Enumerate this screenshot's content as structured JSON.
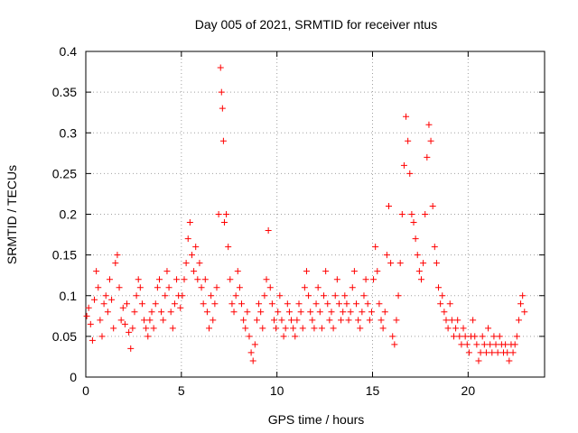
{
  "chart_data": {
    "type": "scatter",
    "title": "Day 005 of 2021, SRMTID for receiver ntus",
    "xlabel": "GPS time / hours",
    "ylabel": "SRMTID / TECUs",
    "xlim": [
      0,
      24
    ],
    "ylim": [
      0,
      0.4
    ],
    "x_ticks": [
      0,
      5,
      10,
      15,
      20
    ],
    "x_tick_labels": [
      "0",
      "5",
      "10",
      "15",
      "20"
    ],
    "y_ticks": [
      0,
      0.05,
      0.1,
      0.15,
      0.2,
      0.25,
      0.3,
      0.35,
      0.4
    ],
    "y_tick_labels": [
      "0",
      "0.05",
      "0.1",
      "0.15",
      "0.2",
      "0.25",
      "0.3",
      "0.35",
      "0.4"
    ],
    "grid": true,
    "marker": "+",
    "color": "#ff0000",
    "series": [
      {
        "name": "ntus",
        "points": [
          [
            0.05,
            0.075
          ],
          [
            0.15,
            0.085
          ],
          [
            0.25,
            0.065
          ],
          [
            0.35,
            0.045
          ],
          [
            0.45,
            0.095
          ],
          [
            0.55,
            0.13
          ],
          [
            0.65,
            0.11
          ],
          [
            0.75,
            0.07
          ],
          [
            0.85,
            0.05
          ],
          [
            0.95,
            0.09
          ],
          [
            1.05,
            0.1
          ],
          [
            1.15,
            0.08
          ],
          [
            1.25,
            0.12
          ],
          [
            1.35,
            0.095
          ],
          [
            1.45,
            0.06
          ],
          [
            1.55,
            0.14
          ],
          [
            1.65,
            0.15
          ],
          [
            1.75,
            0.11
          ],
          [
            1.85,
            0.07
          ],
          [
            1.95,
            0.085
          ],
          [
            2.05,
            0.065
          ],
          [
            2.15,
            0.09
          ],
          [
            2.25,
            0.055
          ],
          [
            2.35,
            0.035
          ],
          [
            2.45,
            0.06
          ],
          [
            2.55,
            0.08
          ],
          [
            2.65,
            0.1
          ],
          [
            2.75,
            0.12
          ],
          [
            2.85,
            0.11
          ],
          [
            2.95,
            0.09
          ],
          [
            3.05,
            0.07
          ],
          [
            3.15,
            0.06
          ],
          [
            3.25,
            0.05
          ],
          [
            3.35,
            0.07
          ],
          [
            3.45,
            0.08
          ],
          [
            3.55,
            0.06
          ],
          [
            3.65,
            0.09
          ],
          [
            3.75,
            0.11
          ],
          [
            3.85,
            0.12
          ],
          [
            3.95,
            0.08
          ],
          [
            4.05,
            0.07
          ],
          [
            4.15,
            0.1
          ],
          [
            4.25,
            0.13
          ],
          [
            4.35,
            0.11
          ],
          [
            4.45,
            0.08
          ],
          [
            4.55,
            0.06
          ],
          [
            4.65,
            0.09
          ],
          [
            4.75,
            0.12
          ],
          [
            4.85,
            0.1
          ],
          [
            4.95,
            0.085
          ],
          [
            5.05,
            0.1
          ],
          [
            5.15,
            0.12
          ],
          [
            5.25,
            0.14
          ],
          [
            5.35,
            0.17
          ],
          [
            5.45,
            0.19
          ],
          [
            5.55,
            0.15
          ],
          [
            5.65,
            0.13
          ],
          [
            5.75,
            0.16
          ],
          [
            5.85,
            0.12
          ],
          [
            5.95,
            0.14
          ],
          [
            6.05,
            0.11
          ],
          [
            6.15,
            0.09
          ],
          [
            6.25,
            0.12
          ],
          [
            6.35,
            0.08
          ],
          [
            6.45,
            0.06
          ],
          [
            6.55,
            0.1
          ],
          [
            6.65,
            0.07
          ],
          [
            6.75,
            0.09
          ],
          [
            6.85,
            0.11
          ],
          [
            6.95,
            0.2
          ],
          [
            7.05,
            0.38
          ],
          [
            7.1,
            0.35
          ],
          [
            7.15,
            0.33
          ],
          [
            7.2,
            0.29
          ],
          [
            7.25,
            0.19
          ],
          [
            7.35,
            0.2
          ],
          [
            7.45,
            0.16
          ],
          [
            7.55,
            0.12
          ],
          [
            7.65,
            0.09
          ],
          [
            7.75,
            0.08
          ],
          [
            7.85,
            0.1
          ],
          [
            7.95,
            0.13
          ],
          [
            8.05,
            0.11
          ],
          [
            8.15,
            0.09
          ],
          [
            8.25,
            0.07
          ],
          [
            8.35,
            0.06
          ],
          [
            8.45,
            0.08
          ],
          [
            8.55,
            0.05
          ],
          [
            8.65,
            0.03
          ],
          [
            8.75,
            0.02
          ],
          [
            8.85,
            0.04
          ],
          [
            8.95,
            0.07
          ],
          [
            9.05,
            0.09
          ],
          [
            9.15,
            0.08
          ],
          [
            9.25,
            0.06
          ],
          [
            9.35,
            0.1
          ],
          [
            9.45,
            0.12
          ],
          [
            9.55,
            0.18
          ],
          [
            9.65,
            0.11
          ],
          [
            9.75,
            0.09
          ],
          [
            9.85,
            0.07
          ],
          [
            9.95,
            0.06
          ],
          [
            10.05,
            0.08
          ],
          [
            10.15,
            0.1
          ],
          [
            10.25,
            0.07
          ],
          [
            10.35,
            0.05
          ],
          [
            10.45,
            0.06
          ],
          [
            10.55,
            0.09
          ],
          [
            10.65,
            0.08
          ],
          [
            10.75,
            0.07
          ],
          [
            10.85,
            0.06
          ],
          [
            10.95,
            0.05
          ],
          [
            11.05,
            0.07
          ],
          [
            11.15,
            0.09
          ],
          [
            11.25,
            0.08
          ],
          [
            11.35,
            0.06
          ],
          [
            11.45,
            0.11
          ],
          [
            11.55,
            0.13
          ],
          [
            11.65,
            0.1
          ],
          [
            11.75,
            0.08
          ],
          [
            11.85,
            0.07
          ],
          [
            11.95,
            0.06
          ],
          [
            12.05,
            0.09
          ],
          [
            12.15,
            0.11
          ],
          [
            12.25,
            0.08
          ],
          [
            12.35,
            0.06
          ],
          [
            12.45,
            0.1
          ],
          [
            12.55,
            0.13
          ],
          [
            12.65,
            0.09
          ],
          [
            12.75,
            0.07
          ],
          [
            12.85,
            0.08
          ],
          [
            12.95,
            0.06
          ],
          [
            13.05,
            0.1
          ],
          [
            13.15,
            0.12
          ],
          [
            13.25,
            0.09
          ],
          [
            13.35,
            0.07
          ],
          [
            13.45,
            0.08
          ],
          [
            13.55,
            0.1
          ],
          [
            13.65,
            0.09
          ],
          [
            13.75,
            0.07
          ],
          [
            13.85,
            0.08
          ],
          [
            13.95,
            0.11
          ],
          [
            14.05,
            0.13
          ],
          [
            14.15,
            0.09
          ],
          [
            14.25,
            0.07
          ],
          [
            14.35,
            0.06
          ],
          [
            14.45,
            0.08
          ],
          [
            14.55,
            0.1
          ],
          [
            14.65,
            0.12
          ],
          [
            14.75,
            0.09
          ],
          [
            14.85,
            0.07
          ],
          [
            14.95,
            0.08
          ],
          [
            15.05,
            0.12
          ],
          [
            15.15,
            0.16
          ],
          [
            15.25,
            0.13
          ],
          [
            15.35,
            0.09
          ],
          [
            15.45,
            0.07
          ],
          [
            15.55,
            0.06
          ],
          [
            15.65,
            0.08
          ],
          [
            15.75,
            0.15
          ],
          [
            15.85,
            0.21
          ],
          [
            15.95,
            0.14
          ],
          [
            16.05,
            0.05
          ],
          [
            16.15,
            0.04
          ],
          [
            16.25,
            0.07
          ],
          [
            16.35,
            0.1
          ],
          [
            16.45,
            0.14
          ],
          [
            16.55,
            0.2
          ],
          [
            16.65,
            0.26
          ],
          [
            16.75,
            0.32
          ],
          [
            16.85,
            0.29
          ],
          [
            16.95,
            0.25
          ],
          [
            17.05,
            0.2
          ],
          [
            17.15,
            0.19
          ],
          [
            17.25,
            0.17
          ],
          [
            17.35,
            0.15
          ],
          [
            17.45,
            0.13
          ],
          [
            17.55,
            0.12
          ],
          [
            17.65,
            0.14
          ],
          [
            17.75,
            0.2
          ],
          [
            17.85,
            0.27
          ],
          [
            17.95,
            0.31
          ],
          [
            18.05,
            0.29
          ],
          [
            18.15,
            0.21
          ],
          [
            18.25,
            0.16
          ],
          [
            18.35,
            0.14
          ],
          [
            18.45,
            0.11
          ],
          [
            18.55,
            0.09
          ],
          [
            18.65,
            0.1
          ],
          [
            18.75,
            0.08
          ],
          [
            18.85,
            0.07
          ],
          [
            18.95,
            0.06
          ],
          [
            19.05,
            0.09
          ],
          [
            19.15,
            0.07
          ],
          [
            19.25,
            0.05
          ],
          [
            19.35,
            0.06
          ],
          [
            19.45,
            0.07
          ],
          [
            19.55,
            0.05
          ],
          [
            19.65,
            0.04
          ],
          [
            19.75,
            0.06
          ],
          [
            19.85,
            0.05
          ],
          [
            19.95,
            0.04
          ],
          [
            20.05,
            0.03
          ],
          [
            20.15,
            0.05
          ],
          [
            20.25,
            0.07
          ],
          [
            20.35,
            0.05
          ],
          [
            20.45,
            0.04
          ],
          [
            20.55,
            0.02
          ],
          [
            20.65,
            0.03
          ],
          [
            20.75,
            0.05
          ],
          [
            20.85,
            0.04
          ],
          [
            20.95,
            0.03
          ],
          [
            21.05,
            0.06
          ],
          [
            21.15,
            0.04
          ],
          [
            21.25,
            0.03
          ],
          [
            21.35,
            0.05
          ],
          [
            21.45,
            0.04
          ],
          [
            21.55,
            0.03
          ],
          [
            21.65,
            0.05
          ],
          [
            21.75,
            0.04
          ],
          [
            21.85,
            0.03
          ],
          [
            21.95,
            0.04
          ],
          [
            22.05,
            0.03
          ],
          [
            22.15,
            0.02
          ],
          [
            22.25,
            0.04
          ],
          [
            22.35,
            0.03
          ],
          [
            22.45,
            0.04
          ],
          [
            22.55,
            0.05
          ],
          [
            22.65,
            0.07
          ],
          [
            22.75,
            0.09
          ],
          [
            22.85,
            0.1
          ],
          [
            22.95,
            0.08
          ]
        ]
      }
    ]
  }
}
